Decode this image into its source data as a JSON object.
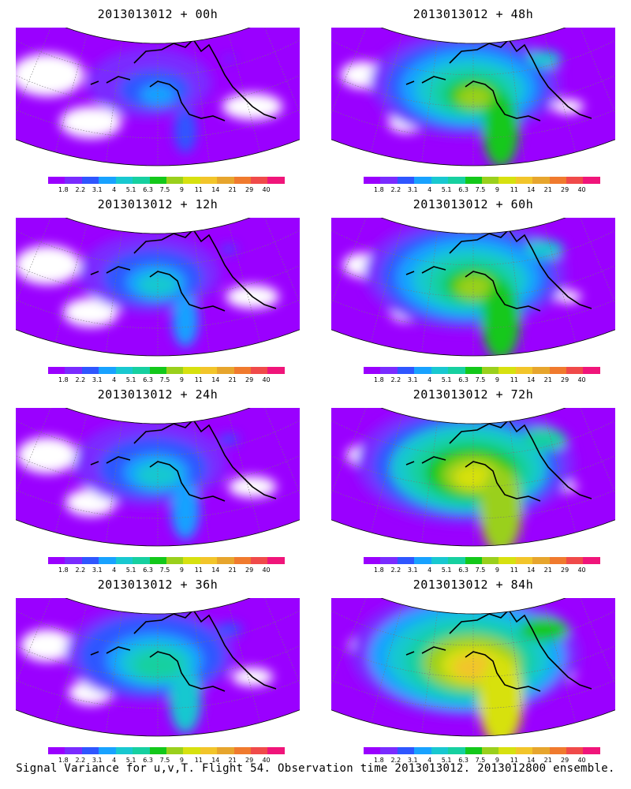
{
  "panels": [
    {
      "title": "2013013012 + 00h",
      "col": 0,
      "row": 0,
      "level": 0.15
    },
    {
      "title": "2013013012 + 48h",
      "col": 1,
      "row": 0,
      "level": 0.55
    },
    {
      "title": "2013013012 + 12h",
      "col": 0,
      "row": 1,
      "level": 0.25
    },
    {
      "title": "2013013012 + 60h",
      "col": 1,
      "row": 1,
      "level": 0.62
    },
    {
      "title": "2013013012 + 24h",
      "col": 0,
      "row": 2,
      "level": 0.32
    },
    {
      "title": "2013013012 + 72h",
      "col": 1,
      "row": 2,
      "level": 0.72
    },
    {
      "title": "2013013012 + 36h",
      "col": 0,
      "row": 3,
      "level": 0.42
    },
    {
      "title": "2013013012 + 84h",
      "col": 1,
      "row": 3,
      "level": 0.78
    }
  ],
  "colorbar": {
    "colors": [
      "#9a00ff",
      "#7a2bff",
      "#2f56ff",
      "#18a2ff",
      "#18c8d0",
      "#16d0a0",
      "#13c81a",
      "#9ad01c",
      "#d7e10f",
      "#f2c52a",
      "#e7a52d",
      "#f07a2e",
      "#f04a4a",
      "#f0157a"
    ],
    "labels": [
      "1.8",
      "2.2",
      "3.1",
      "4",
      "5.1",
      "6.3",
      "7.5",
      "9",
      "11",
      "14",
      "21",
      "29",
      "40"
    ]
  },
  "caption": "Signal Variance for u,v,T. Flight 54. Observation time 2013013012. 2013012800 ensemble."
}
